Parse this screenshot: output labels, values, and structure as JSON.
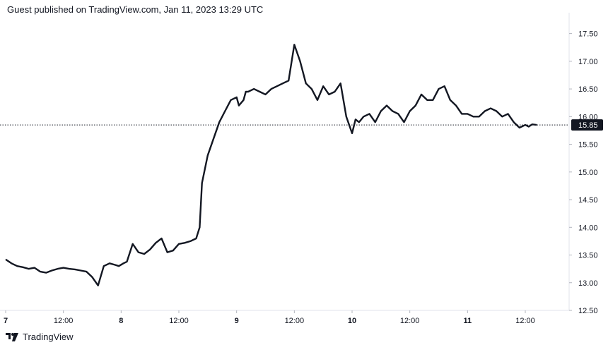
{
  "header": {
    "published_text": "Guest published on TradingView.com, Jan 11, 2023 13:29 UTC"
  },
  "footer": {
    "brand": "TradingView",
    "logo_icon": "tradingview-logo-icon"
  },
  "colors": {
    "line": "#131722",
    "axis_line": "#e0e3eb",
    "price_tag_bg": "#131722",
    "price_tag_text": "#ffffff"
  },
  "chart_data": {
    "type": "line",
    "title": "",
    "xlabel": "",
    "ylabel": "",
    "x_ticks": [
      {
        "label": "7",
        "t": 0,
        "bold": true
      },
      {
        "label": "12:00",
        "t": 0.5,
        "bold": false
      },
      {
        "label": "8",
        "t": 1,
        "bold": true
      },
      {
        "label": "12:00",
        "t": 1.5,
        "bold": false
      },
      {
        "label": "9",
        "t": 2,
        "bold": true
      },
      {
        "label": "12:00",
        "t": 2.5,
        "bold": false
      },
      {
        "label": "10",
        "t": 3,
        "bold": true
      },
      {
        "label": "12:00",
        "t": 3.5,
        "bold": false
      },
      {
        "label": "11",
        "t": 4,
        "bold": true
      },
      {
        "label": "12:00",
        "t": 4.5,
        "bold": false
      }
    ],
    "y_ticks": [
      "17.50",
      "17.00",
      "16.50",
      "16.00",
      "15.50",
      "15.00",
      "14.50",
      "14.00",
      "13.50",
      "13.00",
      "12.50"
    ],
    "ylim": [
      12.5,
      17.75
    ],
    "xlim": [
      0,
      4.8
    ],
    "last_price": {
      "value": 15.85,
      "label": "15.85"
    },
    "series": [
      {
        "x": [
          0.0,
          0.05,
          0.1,
          0.15,
          0.2,
          0.25,
          0.3,
          0.35,
          0.4,
          0.45,
          0.5,
          0.55,
          0.6,
          0.65,
          0.7,
          0.75,
          0.8,
          0.85,
          0.9,
          0.95,
          0.98,
          1.02,
          1.05,
          1.1,
          1.15,
          1.2,
          1.25,
          1.3,
          1.35,
          1.38,
          1.4,
          1.45,
          1.5,
          1.55,
          1.6,
          1.65,
          1.68,
          1.7,
          1.75,
          1.8,
          1.85,
          1.9,
          1.95,
          2.0,
          2.02,
          2.04,
          2.06,
          2.08,
          2.1,
          2.15,
          2.2,
          2.25,
          2.3,
          2.35,
          2.4,
          2.45,
          2.5,
          2.55,
          2.6,
          2.65,
          2.7,
          2.75,
          2.8,
          2.85,
          2.9,
          2.95,
          3.0,
          3.03,
          3.06,
          3.1,
          3.15,
          3.2,
          3.25,
          3.3,
          3.35,
          3.4,
          3.45,
          3.5,
          3.55,
          3.6,
          3.65,
          3.7,
          3.75,
          3.8,
          3.85,
          3.9,
          3.95,
          4.0,
          4.05,
          4.1,
          4.15,
          4.2,
          4.25,
          4.3,
          4.35,
          4.4,
          4.45,
          4.5,
          4.53,
          4.56,
          4.6
        ],
        "y": [
          13.42,
          13.35,
          13.3,
          13.28,
          13.25,
          13.27,
          13.2,
          13.18,
          13.22,
          13.25,
          13.27,
          13.25,
          13.24,
          13.22,
          13.2,
          13.1,
          12.95,
          13.3,
          13.35,
          13.32,
          13.3,
          13.35,
          13.38,
          13.7,
          13.55,
          13.52,
          13.6,
          13.72,
          13.8,
          13.65,
          13.55,
          13.58,
          13.7,
          13.72,
          13.75,
          13.8,
          14.0,
          14.8,
          15.3,
          15.6,
          15.9,
          16.1,
          16.3,
          16.35,
          16.2,
          16.25,
          16.3,
          16.45,
          16.45,
          16.5,
          16.45,
          16.4,
          16.5,
          16.55,
          16.6,
          16.65,
          17.3,
          17.0,
          16.6,
          16.5,
          16.3,
          16.55,
          16.4,
          16.45,
          16.6,
          16.0,
          15.7,
          15.95,
          15.9,
          16.0,
          16.05,
          15.9,
          16.1,
          16.2,
          16.1,
          16.05,
          15.9,
          16.1,
          16.2,
          16.4,
          16.3,
          16.3,
          16.5,
          16.55,
          16.3,
          16.2,
          16.05,
          16.05,
          16.0,
          16.0,
          16.1,
          16.15,
          16.1,
          16.0,
          16.05,
          15.9,
          15.8,
          15.85,
          15.82,
          15.86,
          15.85
        ]
      }
    ]
  }
}
